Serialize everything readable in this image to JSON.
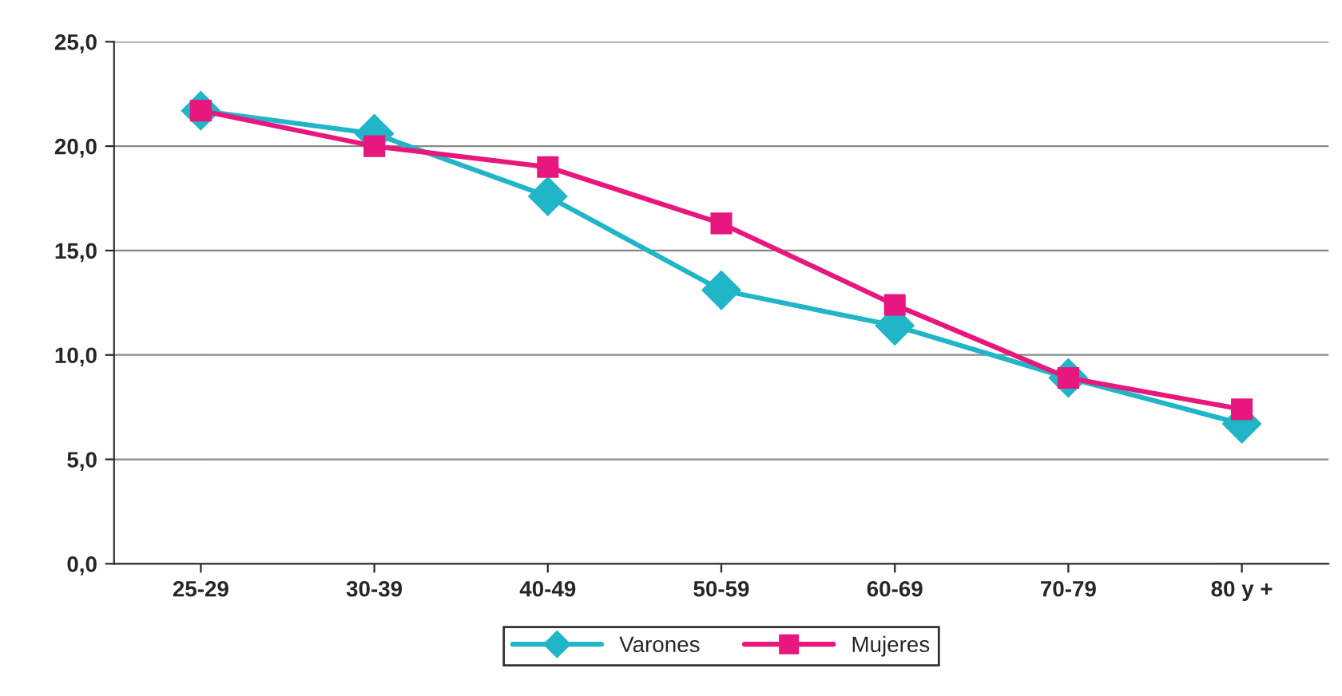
{
  "chart_data": {
    "type": "line",
    "categories": [
      "25-29",
      "30-39",
      "40-49",
      "50-59",
      "60-69",
      "70-79",
      "80 y +"
    ],
    "series": [
      {
        "name": "Varones",
        "color": "#21b5c8",
        "marker": "diamond",
        "values": [
          21.7,
          20.6,
          17.6,
          13.1,
          11.4,
          8.9,
          6.7
        ]
      },
      {
        "name": "Mujeres",
        "color": "#e8177d",
        "marker": "square",
        "values": [
          21.7,
          20.0,
          19.0,
          16.3,
          12.4,
          8.9,
          7.4
        ]
      }
    ],
    "ylim": [
      0,
      25
    ],
    "yticks": [
      {
        "value": 0,
        "label": "0,0"
      },
      {
        "value": 5,
        "label": "5,0"
      },
      {
        "value": 10,
        "label": "10,0"
      },
      {
        "value": 15,
        "label": "15,0"
      },
      {
        "value": 20,
        "label": "20,0"
      },
      {
        "value": 25,
        "label": "25,0"
      }
    ],
    "grid": "y",
    "legend": "bottom",
    "line_style": "solid"
  }
}
